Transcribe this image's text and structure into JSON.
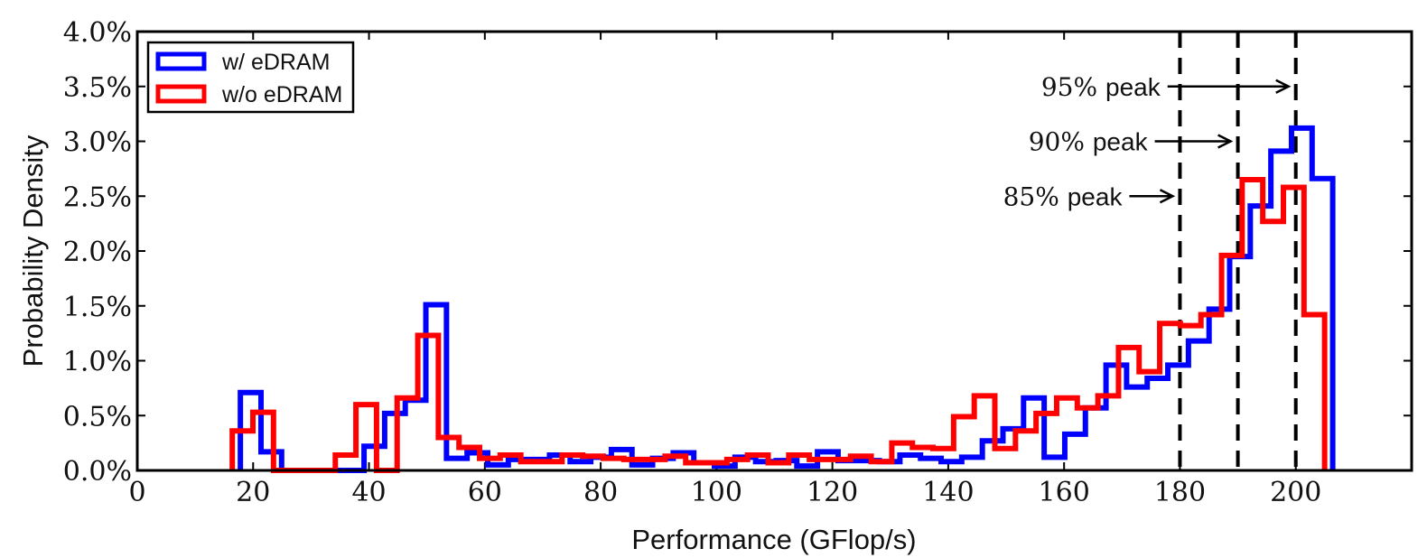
{
  "chart_data": {
    "type": "histogram",
    "title": "",
    "xlabel": "Performance (GFlop/s)",
    "ylabel": "Probability Density",
    "xlim": [
      0,
      220
    ],
    "ylim": [
      0,
      4.0
    ],
    "x_ticks": [
      0,
      20,
      40,
      60,
      80,
      100,
      120,
      140,
      160,
      180,
      200
    ],
    "x_tick_labels": [
      "0",
      "20",
      "40",
      "60",
      "80",
      "100",
      "120",
      "140",
      "160",
      "180",
      "200"
    ],
    "y_ticks": [
      0,
      0.5,
      1.0,
      1.5,
      2.0,
      2.5,
      3.0,
      3.5,
      4.0
    ],
    "y_tick_labels": [
      "0.0%",
      "0.5%",
      "1.0%",
      "1.5%",
      "2.0%",
      "2.5%",
      "3.0%",
      "3.5%",
      "4.0%"
    ],
    "y_unit": "%",
    "grid": false,
    "legend_position": "upper left",
    "bin_width": 3.558,
    "series": [
      {
        "name": "w/ eDRAM",
        "color": "#0000ff",
        "bin_start": 17.8,
        "values": [
          0.71,
          0.17,
          0,
          0,
          0,
          0,
          0.22,
          0.52,
          0.64,
          1.51,
          0.11,
          0.16,
          0.05,
          0.1,
          0.1,
          0.14,
          0.08,
          0.12,
          0.19,
          0.05,
          0.11,
          0.16,
          0.07,
          0.04,
          0.12,
          0.08,
          0.09,
          0.04,
          0.17,
          0.09,
          0.09,
          0.08,
          0.14,
          0.11,
          0.08,
          0.12,
          0.27,
          0.38,
          0.66,
          0.12,
          0.33,
          0.57,
          0.96,
          0.76,
          0.84,
          0.96,
          1.18,
          1.47,
          1.95,
          2.41,
          2.91,
          3.12,
          2.66
        ]
      },
      {
        "name": "w/o eDRAM",
        "color": "#ff0000",
        "bin_start": 16.4,
        "values": [
          0.36,
          0.53,
          0,
          0,
          0,
          0.14,
          0.6,
          0,
          0.66,
          1.23,
          0.3,
          0.21,
          0.11,
          0.14,
          0.08,
          0.08,
          0.14,
          0.13,
          0.11,
          0.1,
          0.1,
          0.13,
          0.07,
          0.07,
          0.1,
          0.14,
          0.07,
          0.14,
          0.1,
          0.1,
          0.13,
          0.08,
          0.25,
          0.21,
          0.2,
          0.49,
          0.68,
          0.2,
          0.36,
          0.52,
          0.66,
          0.57,
          0.68,
          1.12,
          0.9,
          1.34,
          1.32,
          1.42,
          1.96,
          2.65,
          2.27,
          2.58,
          1.42
        ]
      }
    ],
    "reference_lines": [
      {
        "x": 180,
        "style": "dashed",
        "color": "#000000",
        "label": "85% peak"
      },
      {
        "x": 190,
        "style": "dashed",
        "color": "#000000",
        "label": "90% peak"
      },
      {
        "x": 200,
        "style": "dashed",
        "color": "#000000",
        "label": "95% peak"
      }
    ],
    "annotations": [
      {
        "pct": "95%",
        "word": "peak",
        "text": "95% peak",
        "arrow_to_x": 200,
        "y": 3.5
      },
      {
        "pct": "90%",
        "word": "peak",
        "text": "90% peak",
        "arrow_to_x": 190,
        "y": 3.0
      },
      {
        "pct": "85%",
        "word": "peak",
        "text": "85% peak",
        "arrow_to_x": 180,
        "y": 2.5
      }
    ]
  }
}
